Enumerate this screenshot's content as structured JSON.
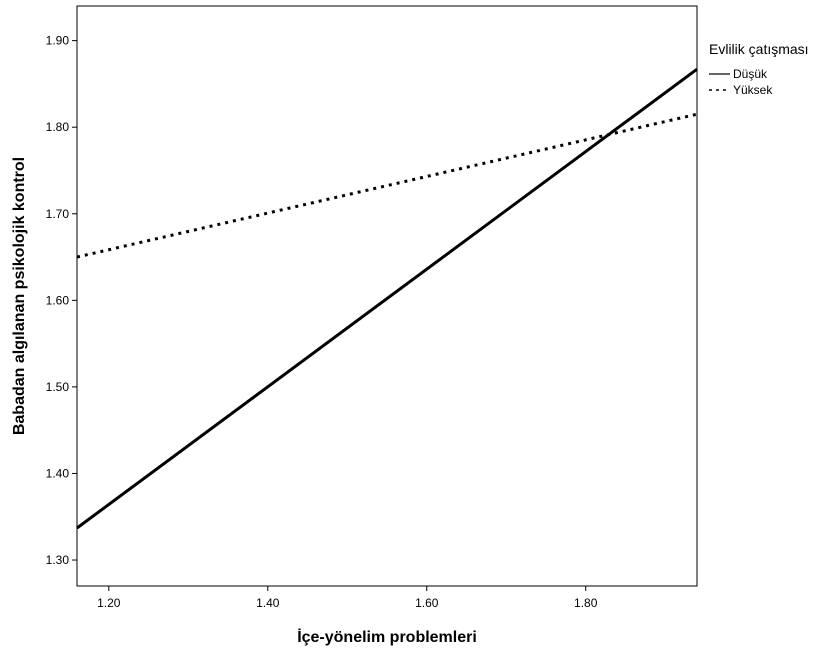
{
  "chart_data": {
    "type": "line",
    "xlabel": "İçe-yönelim problemleri",
    "ylabel": "Babadan algılanan psikolojik kontrol",
    "xlim": [
      1.16,
      1.94
    ],
    "ylim": [
      1.27,
      1.94
    ],
    "x_ticks": [
      "1.20",
      "1.40",
      "1.60",
      "1.80"
    ],
    "y_ticks": [
      "1.30",
      "1.40",
      "1.50",
      "1.60",
      "1.70",
      "1.80",
      "1.90"
    ],
    "legend_title": "Evlilik çatışması",
    "legend_position": "top-right",
    "grid": false,
    "series": [
      {
        "name": "Düşük",
        "x": [
          1.16,
          1.94
        ],
        "y": [
          1.337,
          1.867
        ],
        "style": "solid",
        "color": "#000000"
      },
      {
        "name": "Yüksek",
        "x": [
          1.16,
          1.94
        ],
        "y": [
          1.65,
          1.815
        ],
        "style": "dotted",
        "color": "#000000"
      }
    ]
  }
}
